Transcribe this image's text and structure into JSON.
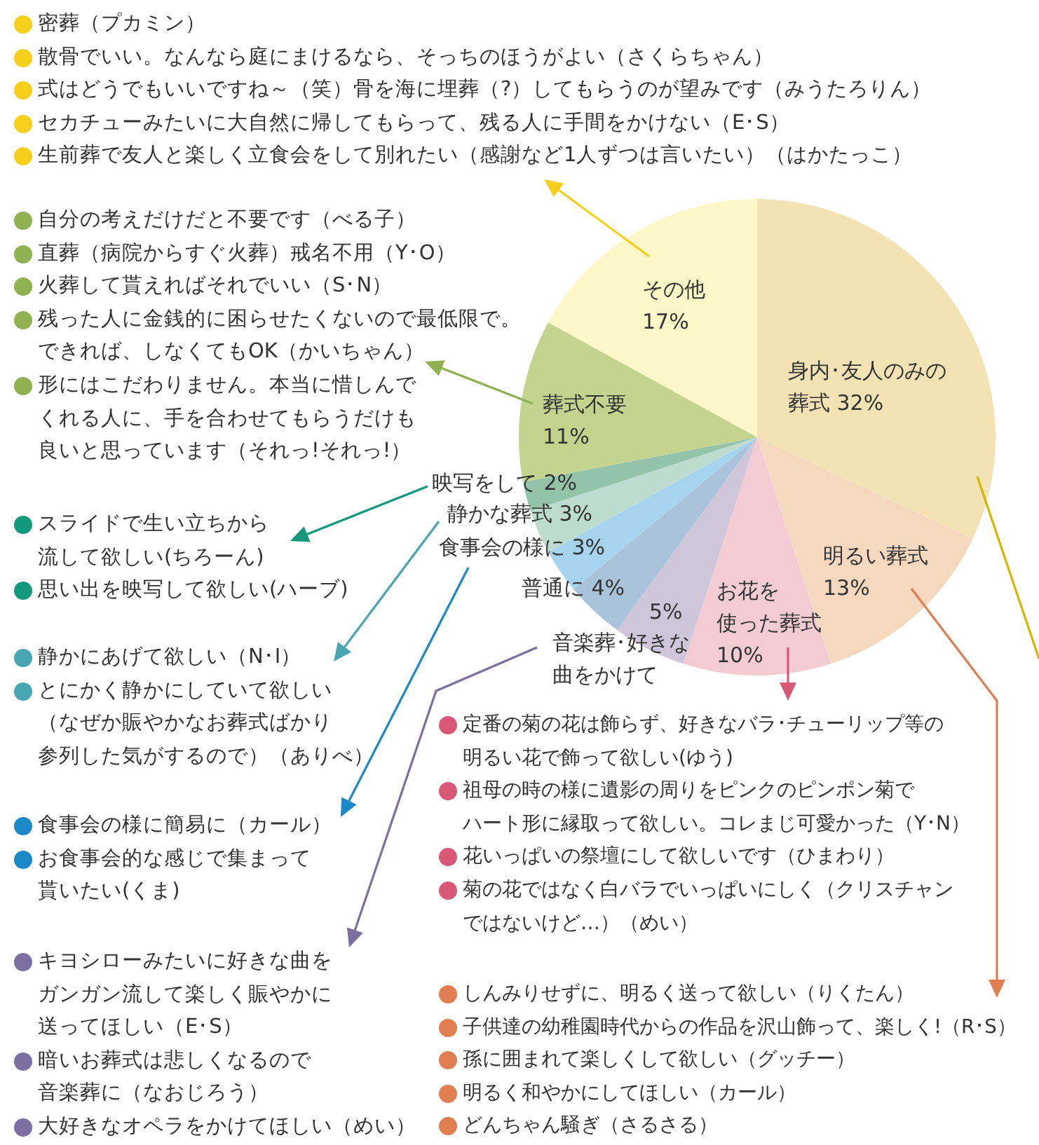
{
  "chart_data": {
    "type": "pie",
    "categories": [
      "身内･友人のみの葬式",
      "明るい葬式",
      "お花を使った葬式",
      "音楽葬･好きな曲をかけて",
      "普通に",
      "食事会の様に",
      "静かな葬式",
      "映写をして",
      "葬式不要",
      "その他"
    ],
    "values": [
      32,
      13,
      10,
      5,
      4,
      3,
      3,
      2,
      11,
      17
    ],
    "value_labels": [
      "32%",
      "13%",
      "10%",
      "5%",
      "4%",
      "3%",
      "3%",
      "2%",
      "11%",
      "17%"
    ],
    "colors": [
      "#f2e2b4",
      "#f6d8bf",
      "#f2cbd3",
      "#cfc6da",
      "#a9c3da",
      "#a6d3ee",
      "#bcdccf",
      "#93c4aa",
      "#c4d38e",
      "#fef8c8"
    ],
    "legend": false,
    "annotations": [
      "密葬（プカミン）",
      "散骨でいい。なんなら庭にまけるなら、そっちのほうがよい（さくらちゃん）",
      "式はどうでもいいですね～（笑）骨を海に埋葬（?）してもらうのが望みです（みうたろりん）",
      "セカチューみたいに大自然に帰してもらって、残る人に手間をかけない（E･S）",
      "生前葬で友人と楽しく立食会をして別れたい（感謝など1人ずつは言いたい）（はかたっこ）",
      "自分の考えだけだと不要です（べる子）",
      "直葬（病院からすぐ火葬）戒名不用（Y･O）",
      "火葬して貰えればそれでいい（S･N）",
      "残った人に金銭的に困らせたくないので最低限で。できれば、しなくてもOK（かいちゃん）",
      "形にはこだわりません。本当に惜しんでくれる人に、手を合わせてもらうだけも良いと思っています（それっ!それっ!）",
      "スライドで生い立ちから流して欲しい(ちろーん)",
      "思い出を映写して欲しい(ハーブ)",
      "静かにあげて欲しい（N･I）",
      "とにかく静かにしていて欲しい（なぜか賑やかなお葬式ばかり参列した気がするので）（ありべ）",
      "食事会の様に簡易に（カール）",
      "お食事会的な感じで集まって貰いたい(くま)",
      "キヨシローみたいに好きな曲をガンガン流して楽しく賑やかに送ってほしい（E･S）",
      "暗いお葬式は悲しくなるので音楽葬に（なおじろう）",
      "大好きなオペラをかけてほしい（めい）",
      "定番の菊の花は飾らず、好きなバラ･チューリップ等の明るい花で飾って欲しい(ゆう)",
      "祖母の時の様に遺影の周りをピンクのピンポン菊でハート形に縁取って欲しい。コレまじ可愛かった（Y･N）",
      "花いっぱいの祭壇にして欲しいです（ひまわり）",
      "菊の花ではなく白バラでいっぱいにしく（クリスチャンではないけど…）（めい）",
      "しんみりせずに、明るく送って欲しい（りくたん）",
      "子供達の幼稚園時代からの作品を沢山飾って、楽しく!（R･S）",
      "孫に囲まれて楽しくして欲しい（グッチー）",
      "明るく和やかにしてほしい（カール）",
      "どんちゃん騒ぎ（さるさる）"
    ]
  }
}
